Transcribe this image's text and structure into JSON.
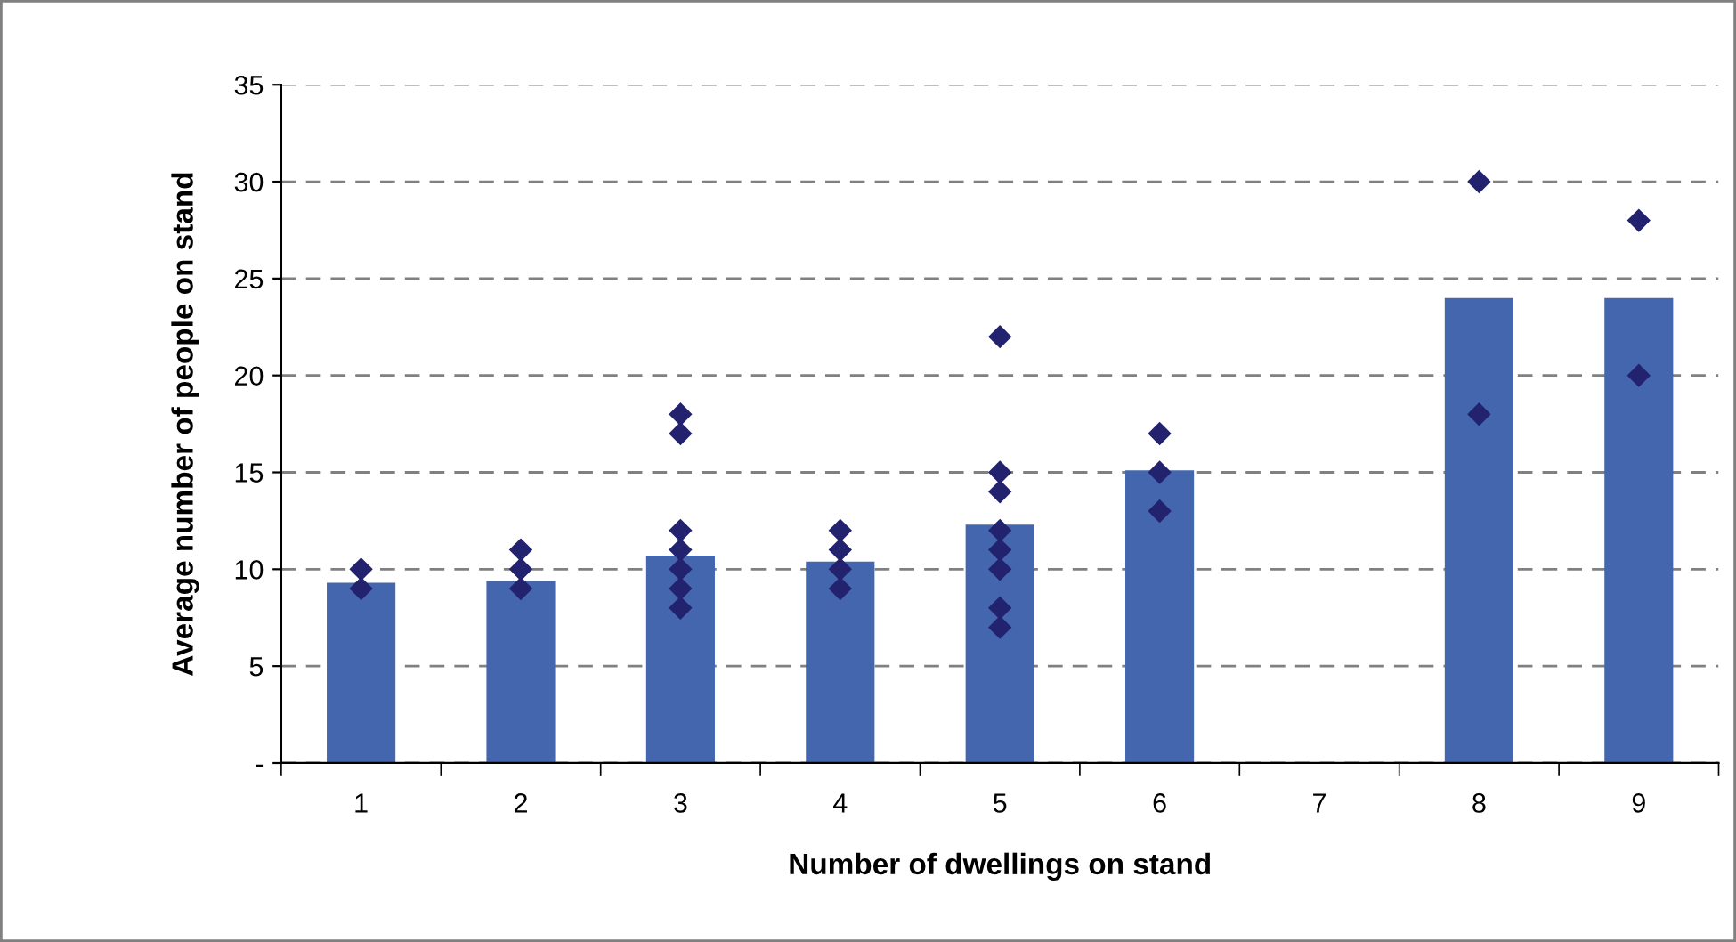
{
  "chart_data": {
    "type": "bar",
    "xlabel": "Number of dwellings on stand",
    "ylabel": "Average number of people on stand",
    "categories": [
      "1",
      "2",
      "3",
      "4",
      "5",
      "6",
      "7",
      "8",
      "9"
    ],
    "series": [
      {
        "color": "#4466ae",
        "values": [
          9.3,
          9.4,
          10.7,
          10.4,
          12.3,
          15.1,
          null,
          24,
          24
        ]
      },
      {
        "type": "scatter",
        "color": "#22226e",
        "marker": "diamond",
        "x": [
          "1",
          "1",
          "2",
          "2",
          "2",
          "3",
          "3",
          "3",
          "3",
          "3",
          "3",
          "3",
          "4",
          "4",
          "4",
          "4",
          "5",
          "5",
          "5",
          "5",
          "5",
          "5",
          "5",
          "5",
          "6",
          "6",
          "6",
          "8",
          "8",
          "9",
          "9"
        ],
        "values": [
          10,
          9,
          11,
          10,
          9,
          18,
          17,
          12,
          11,
          10,
          9,
          8,
          12,
          11,
          10,
          9,
          22,
          15,
          14,
          12,
          11,
          10,
          8,
          7,
          17,
          15,
          13,
          30,
          18,
          28,
          20
        ]
      }
    ],
    "ylim": [
      0,
      35
    ],
    "yticks": [
      {
        "value": 0,
        "label": "-"
      },
      5,
      10,
      15,
      20,
      25,
      30,
      35
    ],
    "grid": "y"
  }
}
